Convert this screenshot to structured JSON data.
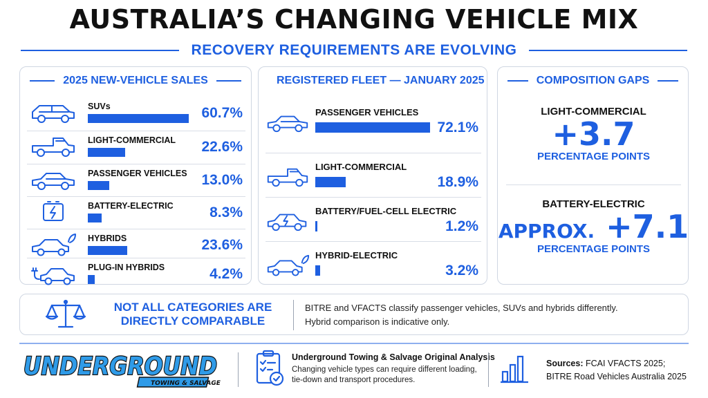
{
  "header": {
    "title": "AUSTRALIA’S CHANGING VEHICLE MIX",
    "subtitle": "RECOVERY REQUIREMENTS ARE EVOLVING"
  },
  "colors": {
    "accent": "#1e5fe0",
    "text": "#111111",
    "border": "#cfd6e2"
  },
  "chart_data": [
    {
      "type": "bar",
      "title": "2025 NEW-VEHICLE SALES",
      "categories": [
        "SUVs",
        "LIGHT-COMMERCIAL",
        "PASSENGER VEHICLES",
        "BATTERY-ELECTRIC",
        "HYBRIDS",
        "PLUG-IN HYBRIDS"
      ],
      "values": [
        60.7,
        22.6,
        13.0,
        8.3,
        23.6,
        4.2
      ],
      "value_labels": [
        "60.7%",
        "22.6%",
        "13.0%",
        "8.3%",
        "23.6%",
        "4.2%"
      ],
      "icons": [
        "suv-icon",
        "ute-icon",
        "sedan-icon",
        "battery-icon",
        "hybrid-car-icon",
        "plug-in-car-icon"
      ]
    },
    {
      "type": "bar",
      "title": "REGISTERED FLEET — JANUARY 2025",
      "categories": [
        "PASSENGER VEHICLES",
        "LIGHT-COMMERCIAL",
        "BATTERY/FUEL-CELL ELECTRIC",
        "HYBRID-ELECTRIC"
      ],
      "values": [
        72.1,
        18.9,
        1.2,
        3.2
      ],
      "value_labels": [
        "72.1%",
        "18.9%",
        "1.2%",
        "3.2%"
      ],
      "icons": [
        "sedan-icon",
        "ute-icon",
        "electric-car-icon",
        "hybrid-car-icon"
      ]
    }
  ],
  "gaps": {
    "title": "COMPOSITION GAPS",
    "items": [
      {
        "label": "LIGHT-COMMERCIAL",
        "prefix": "",
        "value": "+3.7",
        "unit": "PERCENTAGE POINTS"
      },
      {
        "label": "BATTERY-ELECTRIC",
        "prefix": "APPROX.",
        "value": "+7.1",
        "unit": "PERCENTAGE POINTS"
      }
    ]
  },
  "note": {
    "heading": "NOT ALL CATEGORIES ARE DIRECTLY COMPARABLE",
    "line1": "BITRE and VFACTS classify passenger vehicles, SUVs and hybrids differently.",
    "line2": "Hybrid comparison is indicative only.",
    "icon": "scales-icon"
  },
  "footer": {
    "logo_text": "UNDERGROUND",
    "logo_sub": "TOWING & SALVAGE",
    "analysis_title": "Underground Towing & Salvage Original Analysis",
    "analysis_text": "Changing vehicle types can require different loading, tie-down and transport procedures.",
    "sources_label": "Sources:",
    "sources_line1": "FCAI VFACTS 2025;",
    "sources_line2": "BITRE Road Vehicles Australia 2025"
  }
}
